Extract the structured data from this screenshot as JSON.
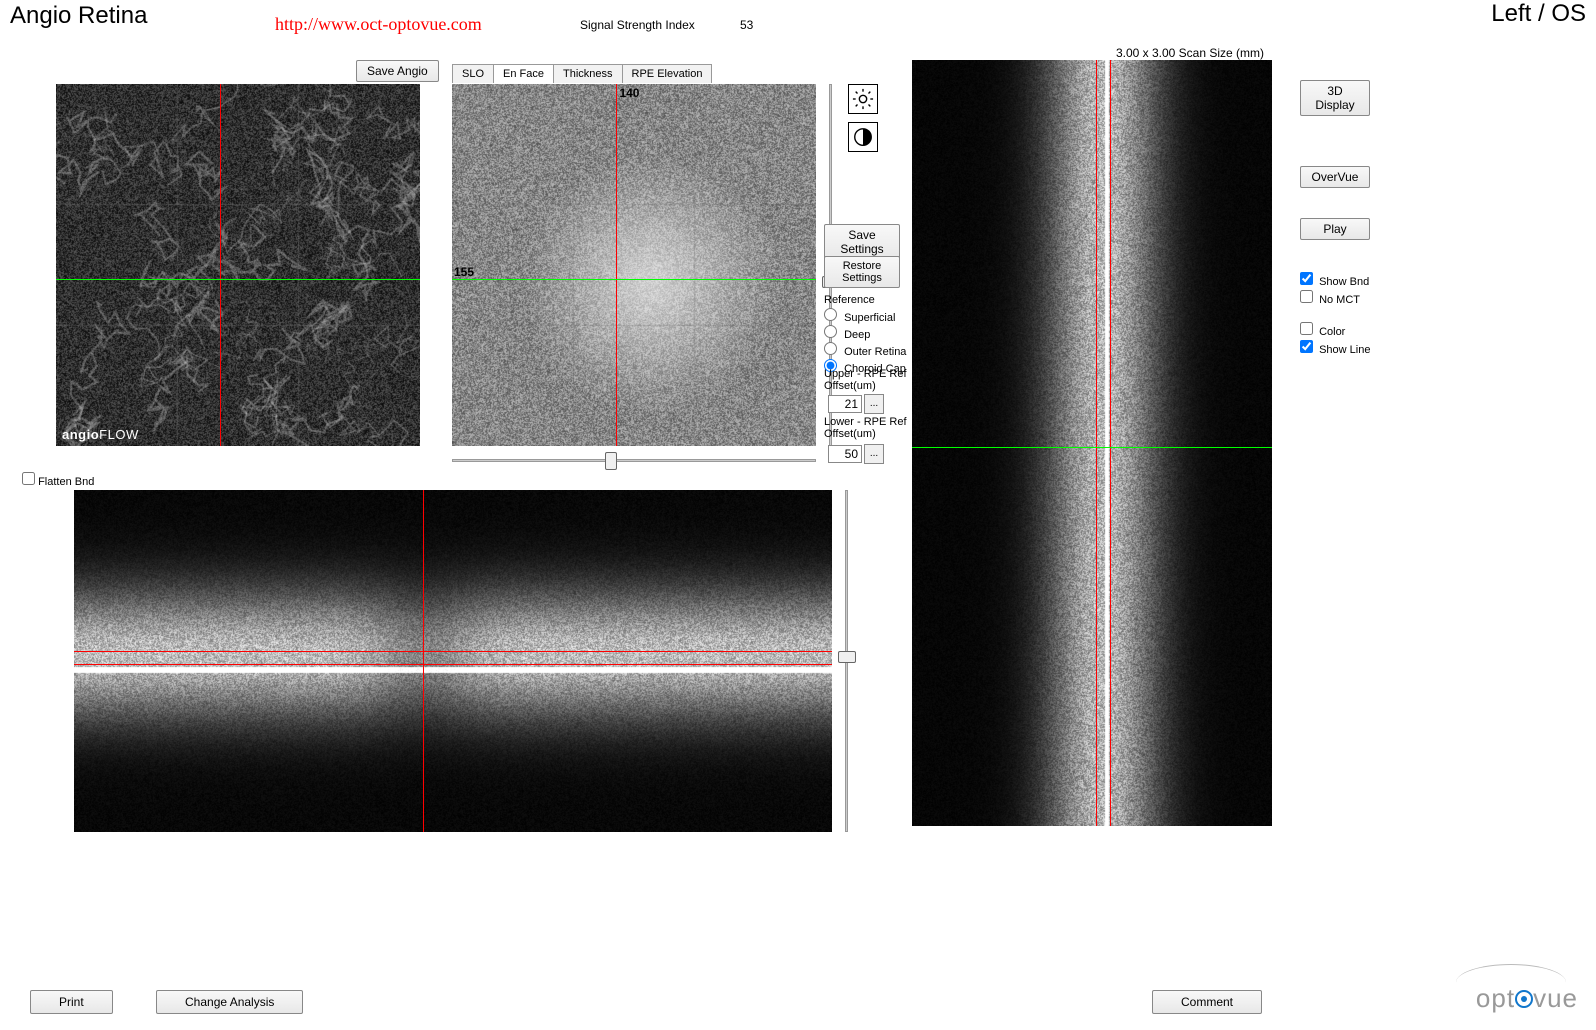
{
  "header": {
    "title_left": "Angio Retina",
    "url": "http://www.oct-optovue.com",
    "ssi_label": "Signal Strength Index",
    "ssi_value": "53",
    "title_right": "Left / OS",
    "scan_size": "3.00 x 3.00 Scan Size (mm)"
  },
  "buttons": {
    "save_angio": "Save Angio",
    "save_settings": "Save Settings",
    "restore_settings": "Restore Settings",
    "three_d": "3D Display",
    "overvue": "OverVue",
    "play": "Play",
    "print": "Print",
    "change_analysis": "Change Analysis",
    "comment": "Comment"
  },
  "tabs": {
    "slo": "SLO",
    "enface": "En Face",
    "thickness": "Thickness",
    "rpe_elev": "RPE Elevation"
  },
  "angio": {
    "flow_label_bold": "angio",
    "flow_label_reg": "FLOW",
    "crosshair_color_v": "#ff0000",
    "crosshair_color_h": "#00ff00"
  },
  "enface": {
    "val_top": "140",
    "val_left": "155"
  },
  "reference": {
    "title": "Reference",
    "options": [
      "Superficial",
      "Deep",
      "Outer Retina",
      "Choroid Cap"
    ],
    "selected": "Choroid Cap"
  },
  "offsets": {
    "upper_label": "Upper - RPE Ref Offset(um)",
    "upper_value": "21",
    "lower_label": "Lower - RPE Ref Offset(um)",
    "lower_value": "50"
  },
  "checkboxes": {
    "flatten_bnd": {
      "label": "Flatten Bnd",
      "checked": false
    },
    "show_bnd": {
      "label": "Show Bnd",
      "checked": true
    },
    "no_mct": {
      "label": "No MCT",
      "checked": false
    },
    "color": {
      "label": "Color",
      "checked": false
    },
    "show_line": {
      "label": "Show Line",
      "checked": true
    }
  },
  "logo": {
    "prefix": "opt",
    "suffix": "vue"
  },
  "colors": {
    "red": "#ff0000",
    "green": "#00ff00",
    "background": "#ffffff",
    "scan_bg": "#000000"
  }
}
